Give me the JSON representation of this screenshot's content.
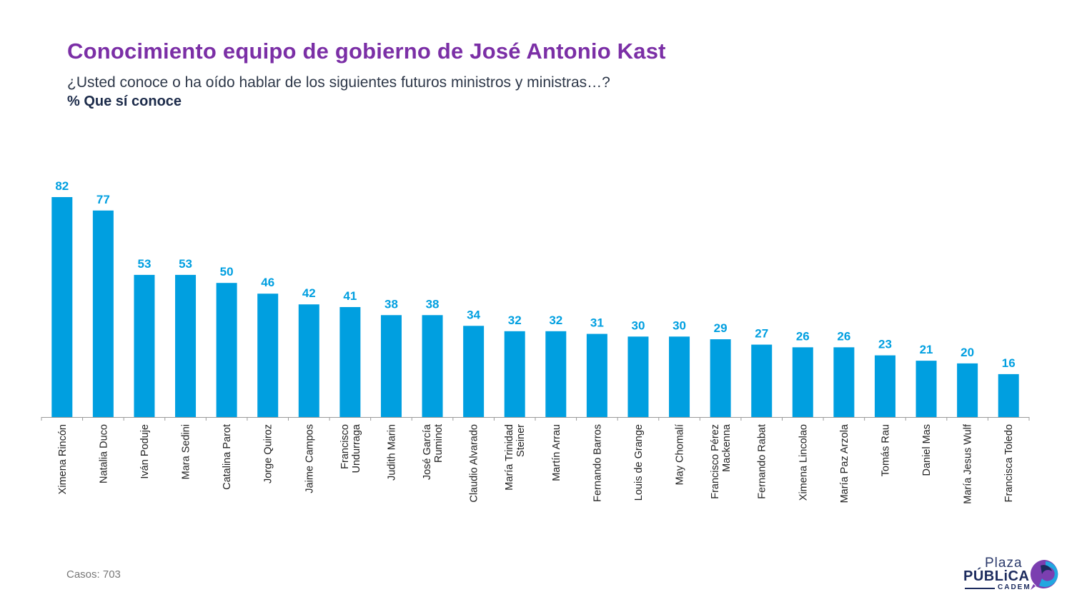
{
  "header": {
    "title": "Conocimiento equipo de gobierno de José Antonio Kast",
    "subtitle": "¿Usted conoce o ha oído hablar de los siguientes futuros ministros y ministras…?",
    "measure": "% Que sí conoce"
  },
  "footer": {
    "cases": "Casos: 703"
  },
  "logo": {
    "line1": "Plaza",
    "line2": "PÚBLiCA",
    "line3": "CADEM",
    "icon": "speech-bubble-logo-icon"
  },
  "colors": {
    "bar": "#009fe0",
    "label": "#009fe0",
    "title": "#7b2fa6",
    "axis": "#9a9a9a"
  },
  "chart_data": {
    "type": "bar",
    "title": "Conocimiento equipo de gobierno de José Antonio Kast",
    "xlabel": "",
    "ylabel": "% Que sí conoce",
    "ylim": [
      0,
      82
    ],
    "grid": false,
    "legend": "none",
    "categories": [
      [
        "Ximena Rincón"
      ],
      [
        "Natalia Duco"
      ],
      [
        "Iván Poduje"
      ],
      [
        "Mara Sedini"
      ],
      [
        "Catalina Parot"
      ],
      [
        "Jorge Quiroz"
      ],
      [
        "Jaime Campos"
      ],
      [
        "Francisco",
        "Undurraga"
      ],
      [
        "Judith Marin"
      ],
      [
        "José García",
        "Ruminot"
      ],
      [
        "Claudio Alvarado"
      ],
      [
        "María Trinidad",
        "Steiner"
      ],
      [
        "Martín Arrau"
      ],
      [
        "Fernando Barros"
      ],
      [
        "Louis de Grange"
      ],
      [
        "May Chomalí"
      ],
      [
        "Francisco Pérez",
        "Mackenna"
      ],
      [
        "Fernando Rabat"
      ],
      [
        "Ximena Lincolao"
      ],
      [
        "María Paz Arzola"
      ],
      [
        "Tomás Rau"
      ],
      [
        "Daniel Mas"
      ],
      [
        "María Jesus Wulf"
      ],
      [
        "Francisca Toledo"
      ]
    ],
    "values": [
      82,
      77,
      53,
      53,
      50,
      46,
      42,
      41,
      38,
      38,
      34,
      32,
      32,
      31,
      30,
      30,
      29,
      27,
      26,
      26,
      23,
      21,
      20,
      16
    ]
  }
}
